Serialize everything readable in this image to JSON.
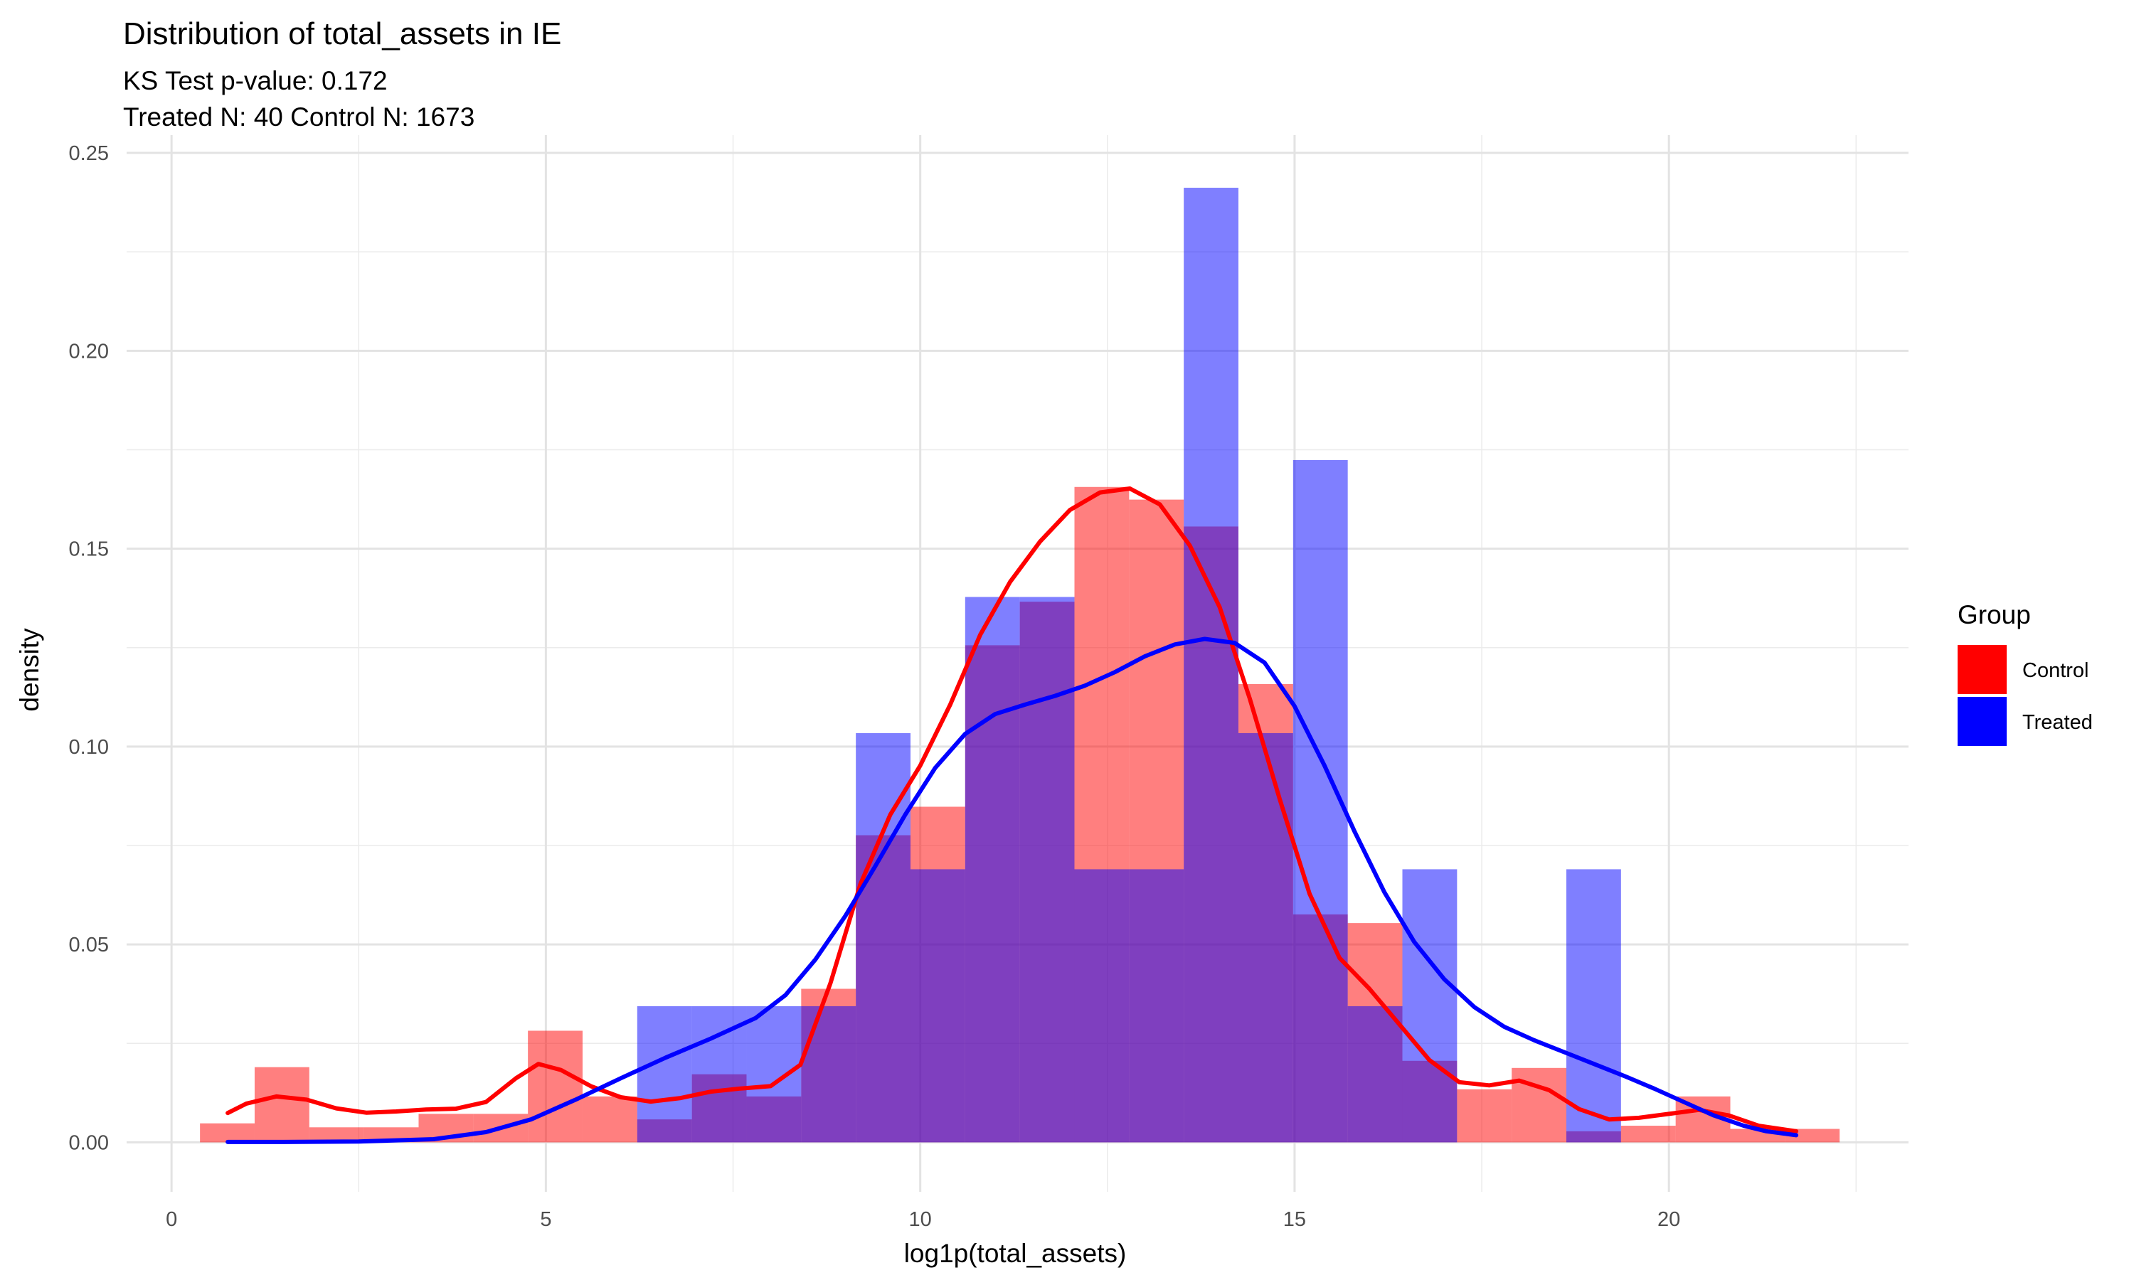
{
  "chart_data": {
    "type": "histogram+density",
    "title": "Distribution of total_assets in IE",
    "subtitle_lines": [
      "KS Test p-value: 0.172",
      "Treated N: 40 Control N: 1673"
    ],
    "xlabel": "log1p(total_assets)",
    "ylabel": "density",
    "xlim": [
      -0.6,
      23.2
    ],
    "ylim": [
      -0.0125,
      0.2545
    ],
    "x_ticks": [
      0,
      5,
      10,
      15,
      20
    ],
    "x_tick_labels": [
      "0",
      "5",
      "10",
      "15",
      "20"
    ],
    "y_ticks": [
      0.0,
      0.05,
      0.1,
      0.15,
      0.2,
      0.25
    ],
    "y_tick_labels": [
      "0.00",
      "0.05",
      "0.10",
      "0.15",
      "0.20",
      "0.25"
    ],
    "grid": true,
    "legend_title": "Group",
    "legend_position": "right",
    "bin_edges": [
      0.38,
      1.11,
      1.84,
      2.57,
      3.3,
      4.03,
      4.76,
      5.49,
      6.22,
      6.95,
      7.68,
      8.41,
      9.14,
      9.87,
      10.6,
      11.33,
      12.06,
      12.79,
      13.52,
      14.25,
      14.98,
      15.71,
      16.44,
      17.17,
      17.9,
      18.63,
      19.36,
      20.09,
      20.82,
      21.55,
      22.28
    ],
    "series": [
      {
        "name": "Control",
        "color": "#FF0000",
        "hist": [
          0.0048,
          0.019,
          0.0038,
          0.0038,
          0.0072,
          0.0072,
          0.0282,
          0.0116,
          0.0058,
          0.0172,
          0.0116,
          0.0388,
          0.0776,
          0.0848,
          0.1256,
          0.1366,
          0.1656,
          0.1624,
          0.1556,
          0.1158,
          0.0576,
          0.0554,
          0.0206,
          0.0134,
          0.0188,
          0.0028,
          0.0042,
          0.0116,
          0.0034,
          0.0034
        ],
        "density": [
          [
            0.75,
            0.0074
          ],
          [
            1.0,
            0.0098
          ],
          [
            1.4,
            0.0116
          ],
          [
            1.8,
            0.0108
          ],
          [
            2.2,
            0.0086
          ],
          [
            2.6,
            0.0075
          ],
          [
            3.0,
            0.0078
          ],
          [
            3.4,
            0.0083
          ],
          [
            3.8,
            0.0085
          ],
          [
            4.2,
            0.0102
          ],
          [
            4.6,
            0.0162
          ],
          [
            4.9,
            0.0198
          ],
          [
            5.2,
            0.0183
          ],
          [
            5.6,
            0.0142
          ],
          [
            6.0,
            0.0114
          ],
          [
            6.4,
            0.0103
          ],
          [
            6.8,
            0.0112
          ],
          [
            7.2,
            0.0128
          ],
          [
            7.6,
            0.0136
          ],
          [
            8.0,
            0.0142
          ],
          [
            8.4,
            0.0196
          ],
          [
            8.8,
            0.0402
          ],
          [
            9.2,
            0.0652
          ],
          [
            9.6,
            0.0828
          ],
          [
            10.0,
            0.0952
          ],
          [
            10.4,
            0.1106
          ],
          [
            10.8,
            0.1282
          ],
          [
            11.2,
            0.1416
          ],
          [
            11.6,
            0.1518
          ],
          [
            12.0,
            0.1598
          ],
          [
            12.4,
            0.1642
          ],
          [
            12.8,
            0.1652
          ],
          [
            13.2,
            0.1612
          ],
          [
            13.6,
            0.1508
          ],
          [
            14.0,
            0.1352
          ],
          [
            14.4,
            0.1122
          ],
          [
            14.8,
            0.0868
          ],
          [
            15.2,
            0.0628
          ],
          [
            15.6,
            0.0466
          ],
          [
            16.0,
            0.0388
          ],
          [
            16.4,
            0.0298
          ],
          [
            16.8,
            0.0208
          ],
          [
            17.2,
            0.0152
          ],
          [
            17.6,
            0.0144
          ],
          [
            18.0,
            0.0156
          ],
          [
            18.4,
            0.0132
          ],
          [
            18.8,
            0.0084
          ],
          [
            19.2,
            0.0058
          ],
          [
            19.6,
            0.0062
          ],
          [
            20.0,
            0.0072
          ],
          [
            20.4,
            0.0082
          ],
          [
            20.8,
            0.0068
          ],
          [
            21.2,
            0.0042
          ],
          [
            21.7,
            0.0028
          ]
        ]
      },
      {
        "name": "Treated",
        "color": "#0000FF",
        "hist": [
          0,
          0,
          0,
          0,
          0,
          0,
          0,
          0,
          0.0344,
          0.0344,
          0.0344,
          0.0344,
          0.1034,
          0.069,
          0.1378,
          0.1378,
          0.069,
          0.069,
          0.2412,
          0.1034,
          0.1724,
          0.0344,
          0.069,
          0,
          0,
          0.069,
          0,
          0,
          0,
          0
        ],
        "density": [
          [
            0.75,
            0.0001
          ],
          [
            1.5,
            0.0001
          ],
          [
            2.5,
            0.0002
          ],
          [
            3.5,
            0.0008
          ],
          [
            4.2,
            0.0026
          ],
          [
            4.8,
            0.0058
          ],
          [
            5.4,
            0.0108
          ],
          [
            6.0,
            0.0162
          ],
          [
            6.6,
            0.0214
          ],
          [
            7.2,
            0.0262
          ],
          [
            7.8,
            0.0314
          ],
          [
            8.2,
            0.0372
          ],
          [
            8.6,
            0.0462
          ],
          [
            9.0,
            0.0572
          ],
          [
            9.4,
            0.0698
          ],
          [
            9.8,
            0.0828
          ],
          [
            10.2,
            0.0946
          ],
          [
            10.6,
            0.1032
          ],
          [
            11.0,
            0.1082
          ],
          [
            11.4,
            0.1106
          ],
          [
            11.8,
            0.1128
          ],
          [
            12.2,
            0.1154
          ],
          [
            12.6,
            0.1188
          ],
          [
            13.0,
            0.1228
          ],
          [
            13.4,
            0.1258
          ],
          [
            13.8,
            0.1272
          ],
          [
            14.2,
            0.1262
          ],
          [
            14.6,
            0.1212
          ],
          [
            15.0,
            0.1102
          ],
          [
            15.4,
            0.0952
          ],
          [
            15.8,
            0.0786
          ],
          [
            16.2,
            0.0632
          ],
          [
            16.6,
            0.0506
          ],
          [
            17.0,
            0.0412
          ],
          [
            17.4,
            0.0342
          ],
          [
            17.8,
            0.0292
          ],
          [
            18.2,
            0.0258
          ],
          [
            18.6,
            0.0228
          ],
          [
            19.0,
            0.0198
          ],
          [
            19.4,
            0.0168
          ],
          [
            19.8,
            0.0136
          ],
          [
            20.2,
            0.0102
          ],
          [
            20.6,
            0.0068
          ],
          [
            21.0,
            0.0042
          ],
          [
            21.3,
            0.0028
          ],
          [
            21.7,
            0.0018
          ]
        ]
      }
    ]
  }
}
